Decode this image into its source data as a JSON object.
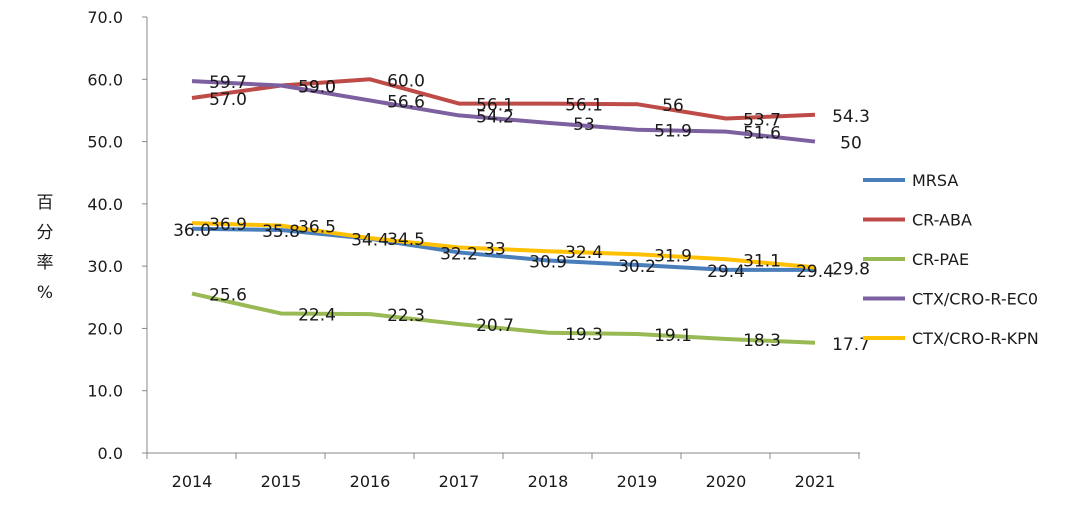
{
  "chart_data": {
    "type": "line",
    "title": "",
    "xlabel": "",
    "ylabel": "百分率%",
    "ylabel_chars": [
      "百",
      "分",
      "率",
      "%"
    ],
    "ylim": [
      0,
      70
    ],
    "yticks": [
      "0.0",
      "10.0",
      "20.0",
      "30.0",
      "40.0",
      "50.0",
      "60.0",
      "70.0"
    ],
    "categories": [
      "2014",
      "2015",
      "2016",
      "2017",
      "2018",
      "2019",
      "2020",
      "2021"
    ],
    "grid": false,
    "legend_position": "right",
    "series": [
      {
        "name": "MRSA",
        "color": "#4a7ebb",
        "values": [
          36.0,
          35.8,
          34.4,
          32.2,
          30.9,
          30.2,
          29.4,
          29.4
        ],
        "labels": [
          "36.0",
          "35.8",
          "34.4",
          "32.2",
          "30.9",
          "30.2",
          "29.4",
          "29.4"
        ]
      },
      {
        "name": "CR-ABA",
        "color": "#be4b48",
        "values": [
          57.0,
          59.0,
          60.0,
          56.1,
          56.1,
          56,
          53.7,
          54.3
        ],
        "labels": [
          "57.0",
          "59.0",
          "60.0",
          "56.1",
          "56.1",
          "56",
          "53.7",
          "54.3"
        ]
      },
      {
        "name": "CR-PAE",
        "color": "#98b954",
        "values": [
          25.6,
          22.4,
          22.3,
          20.7,
          19.3,
          19.1,
          18.3,
          17.7
        ],
        "labels": [
          "25.6",
          "22.4",
          "22.3",
          "20.7",
          "19.3",
          "19.1",
          "18.3",
          "17.7"
        ]
      },
      {
        "name": "CTX/CRO-R-EC0",
        "color": "#7d60a0",
        "values": [
          59.7,
          59.0,
          56.6,
          54.2,
          53,
          51.9,
          51.6,
          50
        ],
        "labels": [
          "59.7",
          "59.0",
          "56.6",
          "54.2",
          "53",
          "51.9",
          "51.6",
          "50"
        ]
      },
      {
        "name": "CTX/CRO-R-KPN",
        "color": "#ffc000",
        "values": [
          36.9,
          36.5,
          34.5,
          33,
          32.4,
          31.9,
          31.1,
          29.8
        ],
        "labels": [
          "36.9",
          "36.5",
          "34.5",
          "33",
          "32.4",
          "31.9",
          "31.1",
          "29.8"
        ]
      }
    ]
  }
}
